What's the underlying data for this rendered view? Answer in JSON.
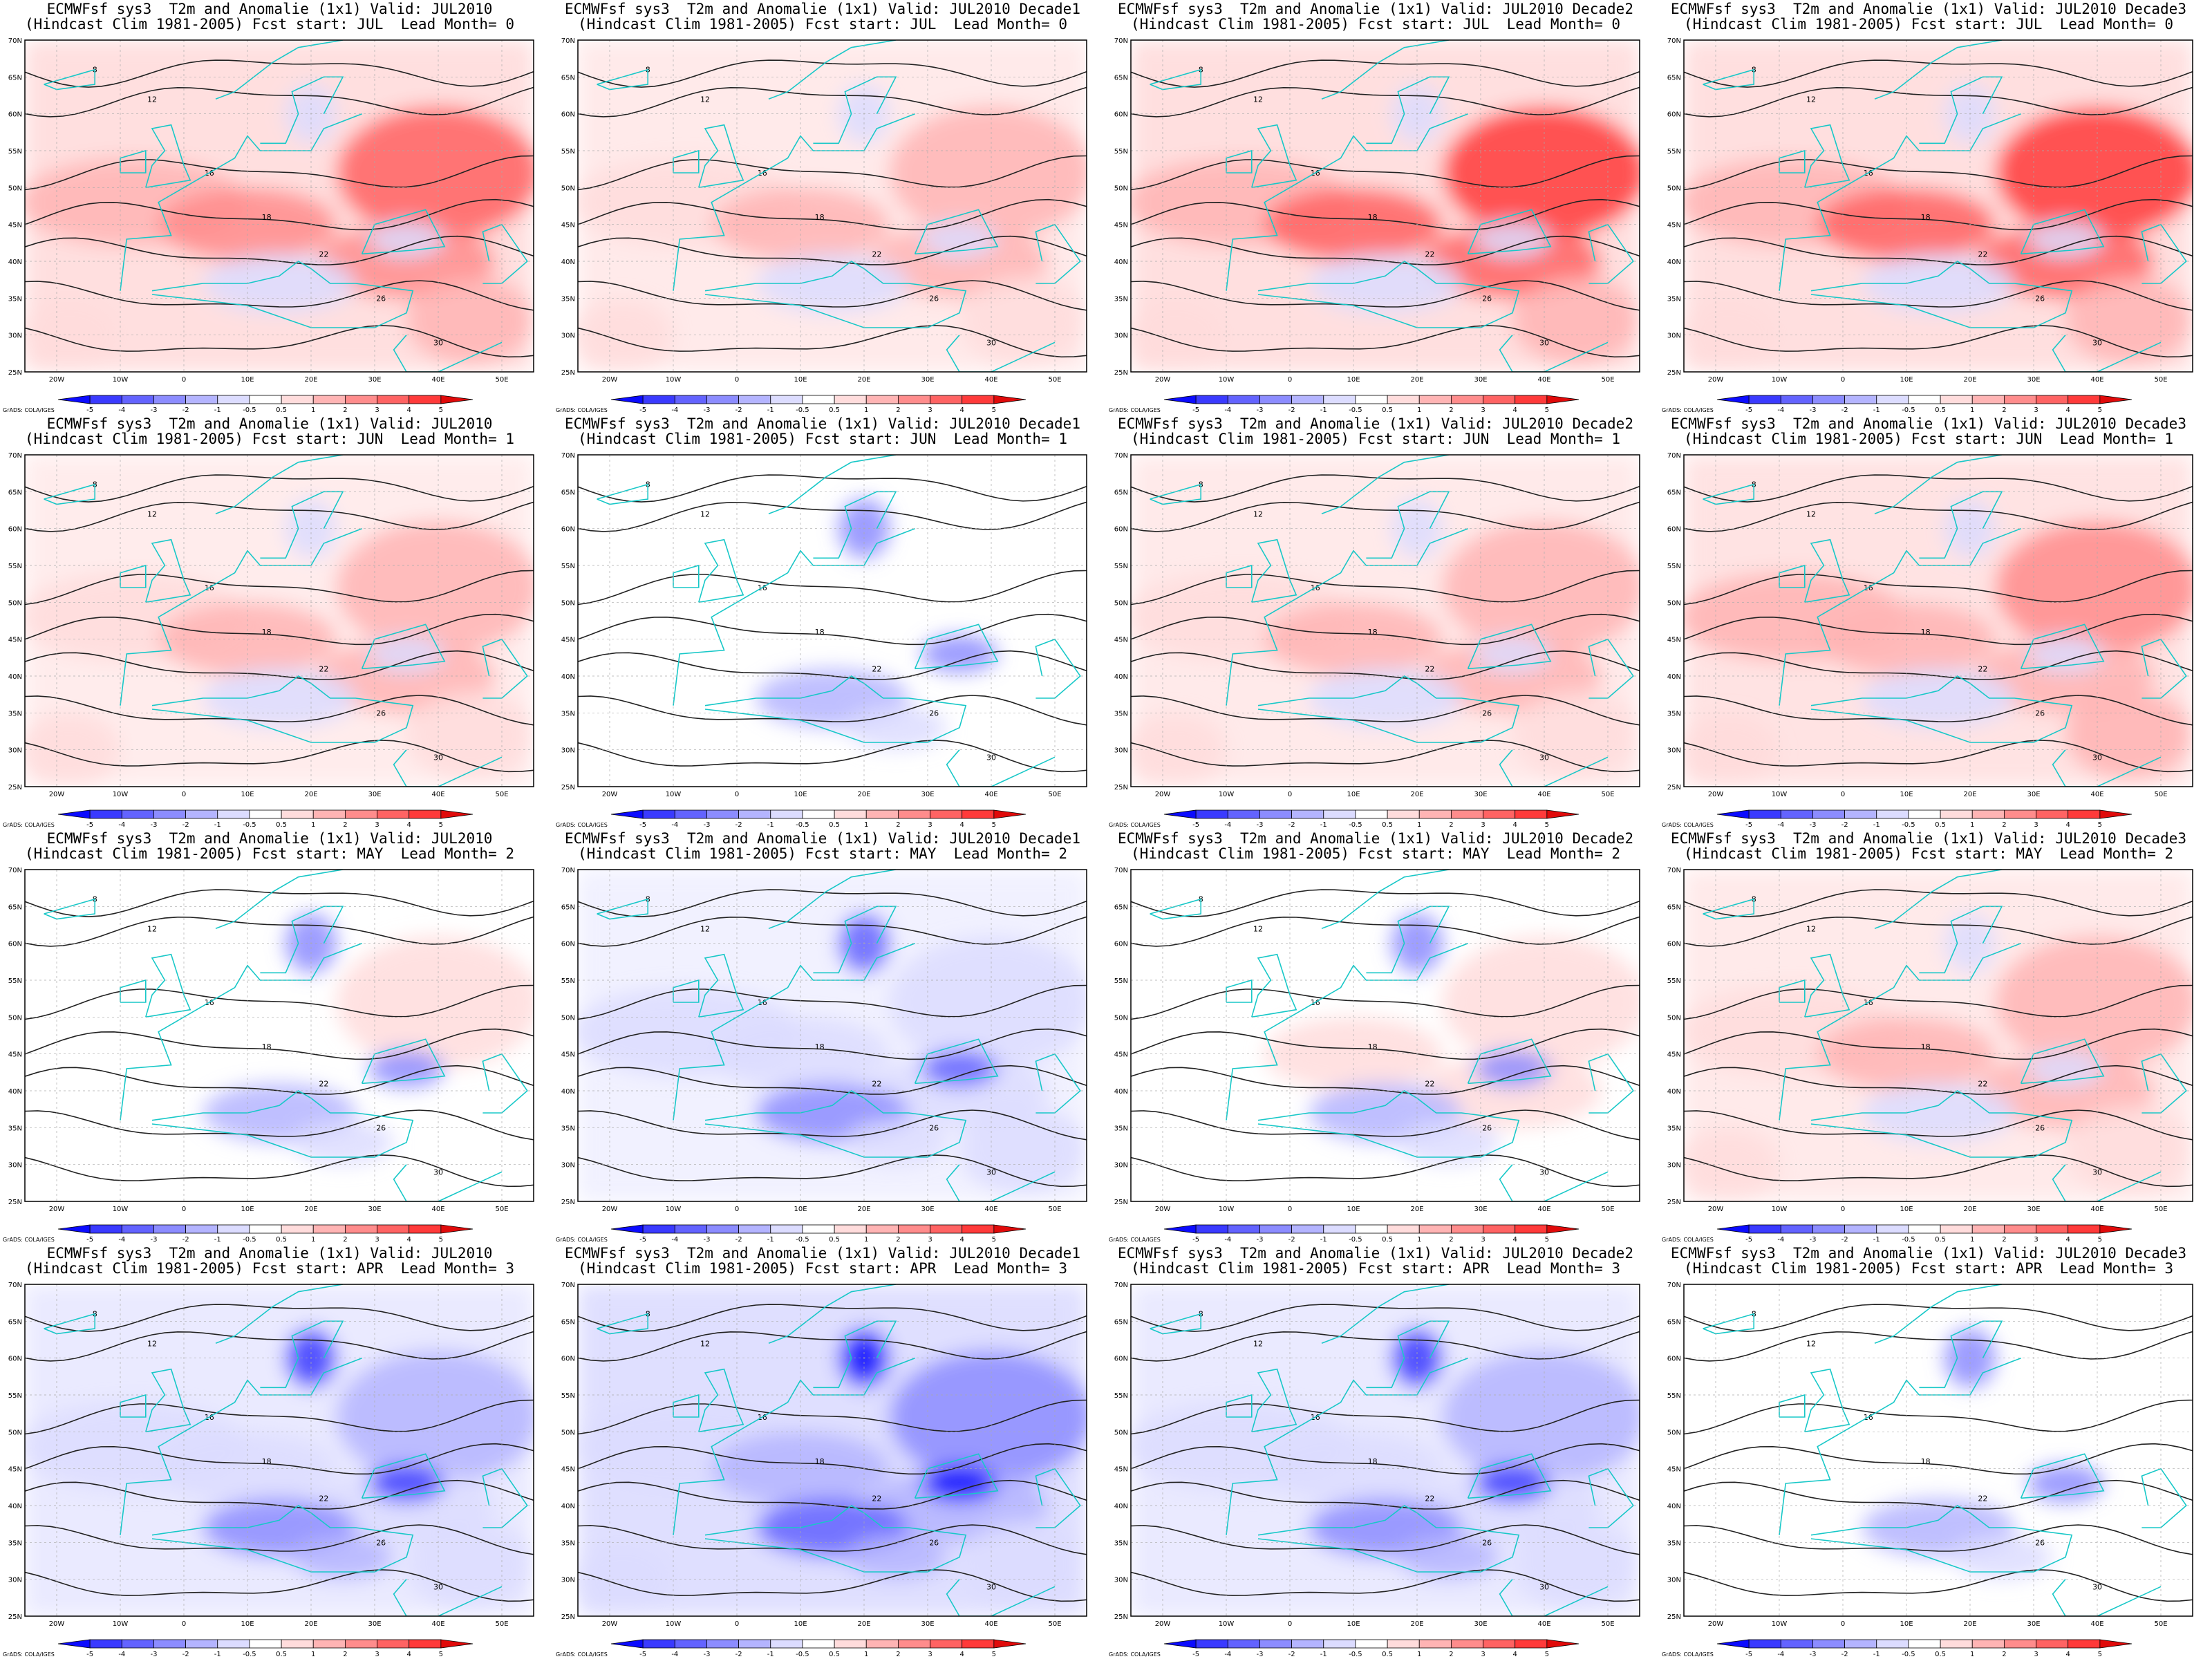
{
  "figure": {
    "rows": [
      {
        "lead_month": "0",
        "fcst_start": "JUL"
      },
      {
        "lead_month": "1",
        "fcst_start": "JUN"
      },
      {
        "lead_month": "2",
        "fcst_start": "MAY"
      },
      {
        "lead_month": "3",
        "fcst_start": "APR"
      }
    ],
    "columns": [
      "JUL2010",
      "JUL2010 Decade1",
      "JUL2010 Decade2",
      "JUL2010 Decade3"
    ],
    "title_prefix": "ECMWFsf sys3  T2m and Anomalie (1x1) Valid: ",
    "subtitle_prefix": "(Hindcast Clim 1981-2005) Fcst start: ",
    "subtitle_mid": "  Lead Month= ",
    "credit": "GrADS: COLA/IGES",
    "lat_labels": [
      "70N",
      "65N",
      "60N",
      "55N",
      "50N",
      "45N",
      "40N",
      "35N",
      "30N",
      "25N"
    ],
    "lon_labels": [
      "20W",
      "10W",
      "0",
      "10E",
      "20E",
      "30E",
      "40E",
      "50E"
    ],
    "colorbar_labels": [
      "-5",
      "-4",
      "-3",
      "-2",
      "-1",
      "-0.5",
      "0.5",
      "1",
      "2",
      "3",
      "4",
      "5"
    ],
    "colorbar_colors": [
      "#0b0bff",
      "#3a3aff",
      "#6363ff",
      "#8c8cff",
      "#b4b4ff",
      "#dcdcff",
      "#ffffff",
      "#ffdcdc",
      "#ffb4b4",
      "#ff8c8c",
      "#ff6363",
      "#ff3a3a",
      "#e00a0a"
    ],
    "contour_labels": [
      "8",
      "12",
      "16",
      "18",
      "22",
      "26",
      "30"
    ],
    "coast_color": "#18c8c8"
  },
  "chart_data": [
    {
      "type": "heatmap",
      "title": "ECMWFsf sys3  T2m and Anomalie (1x1) Valid: JUL2010",
      "subtitle": "(Hindcast Clim 1981-2005) Fcst start: JUL  Lead Month= 0",
      "xlim": [
        -25,
        55
      ],
      "ylim": [
        25,
        70
      ],
      "anomaly_pattern": "strong warm",
      "mean": 1.6
    },
    {
      "type": "heatmap",
      "title": "ECMWFsf sys3  T2m and Anomalie (1x1) Valid: JUL2010 Decade1",
      "subtitle": "(Hindcast Clim 1981-2005) Fcst start: JUL  Lead Month= 0",
      "xlim": [
        -25,
        55
      ],
      "ylim": [
        25,
        70
      ],
      "anomaly_pattern": "warm north, cool south-east",
      "mean": 0.9
    },
    {
      "type": "heatmap",
      "title": "ECMWFsf sys3  T2m and Anomalie (1x1) Valid: JUL2010 Decade2",
      "subtitle": "(Hindcast Clim 1981-2005) Fcst start: JUL  Lead Month= 0",
      "xlim": [
        -25,
        55
      ],
      "ylim": [
        25,
        70
      ],
      "anomaly_pattern": "strong warm",
      "mean": 1.8
    },
    {
      "type": "heatmap",
      "title": "ECMWFsf sys3  T2m and Anomalie (1x1) Valid: JUL2010 Decade3",
      "subtitle": "(Hindcast Clim 1981-2005) Fcst start: JUL  Lead Month= 0",
      "xlim": [
        -25,
        55
      ],
      "ylim": [
        25,
        70
      ],
      "anomaly_pattern": "strong warm",
      "mean": 1.8
    },
    {
      "type": "heatmap",
      "title": "ECMWFsf sys3  T2m and Anomalie (1x1) Valid: JUL2010",
      "subtitle": "(Hindcast Clim 1981-2005) Fcst start: JUN  Lead Month= 1",
      "xlim": [
        -25,
        55
      ],
      "ylim": [
        25,
        70
      ],
      "anomaly_pattern": "moderate warm",
      "mean": 0.8
    },
    {
      "type": "heatmap",
      "title": "ECMWFsf sys3  T2m and Anomalie (1x1) Valid: JUL2010 Decade1",
      "subtitle": "(Hindcast Clim 1981-2005) Fcst start: JUN  Lead Month= 1",
      "xlim": [
        -25,
        55
      ],
      "ylim": [
        25,
        70
      ],
      "anomaly_pattern": "weak, cool Baltic",
      "mean": 0.1
    },
    {
      "type": "heatmap",
      "title": "ECMWFsf sys3  T2m and Anomalie (1x1) Valid: JUL2010 Decade2",
      "subtitle": "(Hindcast Clim 1981-2005) Fcst start: JUN  Lead Month= 1",
      "xlim": [
        -25,
        55
      ],
      "ylim": [
        25,
        70
      ],
      "anomaly_pattern": "moderate warm",
      "mean": 0.9
    },
    {
      "type": "heatmap",
      "title": "ECMWFsf sys3  T2m and Anomalie (1x1) Valid: JUL2010 Decade3",
      "subtitle": "(Hindcast Clim 1981-2005) Fcst start: JUN  Lead Month= 1",
      "xlim": [
        -25,
        55
      ],
      "ylim": [
        25,
        70
      ],
      "anomaly_pattern": "warm",
      "mean": 1.2
    },
    {
      "type": "heatmap",
      "title": "ECMWFsf sys3  T2m and Anomalie (1x1) Valid: JUL2010",
      "subtitle": "(Hindcast Clim 1981-2005) Fcst start: MAY  Lead Month= 2",
      "xlim": [
        -25,
        55
      ],
      "ylim": [
        25,
        70
      ],
      "anomaly_pattern": "mixed, cool Baltic and Black Sea",
      "mean": 0.2
    },
    {
      "type": "heatmap",
      "title": "ECMWFsf sys3  T2m and Anomalie (1x1) Valid: JUL2010 Decade1",
      "subtitle": "(Hindcast Clim 1981-2005) Fcst start: MAY  Lead Month= 2",
      "xlim": [
        -25,
        55
      ],
      "ylim": [
        25,
        70
      ],
      "anomaly_pattern": "cool Mediterranean",
      "mean": -0.4
    },
    {
      "type": "heatmap",
      "title": "ECMWFsf sys3  T2m and Anomalie (1x1) Valid: JUL2010 Decade2",
      "subtitle": "(Hindcast Clim 1981-2005) Fcst start: MAY  Lead Month= 2",
      "xlim": [
        -25,
        55
      ],
      "ylim": [
        25,
        70
      ],
      "anomaly_pattern": "mixed",
      "mean": 0.3
    },
    {
      "type": "heatmap",
      "title": "ECMWFsf sys3  T2m and Anomalie (1x1) Valid: JUL2010 Decade3",
      "subtitle": "(Hindcast Clim 1981-2005) Fcst start: MAY  Lead Month= 2",
      "xlim": [
        -25,
        55
      ],
      "ylim": [
        25,
        70
      ],
      "anomaly_pattern": "warm east",
      "mean": 0.9
    },
    {
      "type": "heatmap",
      "title": "ECMWFsf sys3  T2m and Anomalie (1x1) Valid: JUL2010",
      "subtitle": "(Hindcast Clim 1981-2005) Fcst start: APR  Lead Month= 3",
      "xlim": [
        -25,
        55
      ],
      "ylim": [
        25,
        70
      ],
      "anomaly_pattern": "cool",
      "mean": -0.6
    },
    {
      "type": "heatmap",
      "title": "ECMWFsf sys3  T2m and Anomalie (1x1) Valid: JUL2010 Decade1",
      "subtitle": "(Hindcast Clim 1981-2005) Fcst start: APR  Lead Month= 3",
      "xlim": [
        -25,
        55
      ],
      "ylim": [
        25,
        70
      ],
      "anomaly_pattern": "strong cool",
      "mean": -1.1
    },
    {
      "type": "heatmap",
      "title": "ECMWFsf sys3  T2m and Anomalie (1x1) Valid: JUL2010 Decade2",
      "subtitle": "(Hindcast Clim 1981-2005) Fcst start: APR  Lead Month= 3",
      "xlim": [
        -25,
        55
      ],
      "ylim": [
        25,
        70
      ],
      "anomaly_pattern": "cool",
      "mean": -0.6
    },
    {
      "type": "heatmap",
      "title": "ECMWFsf sys3  T2m and Anomalie (1x1) Valid: JUL2010 Decade3",
      "subtitle": "(Hindcast Clim 1981-2005) Fcst start: APR  Lead Month= 3",
      "xlim": [
        -25,
        55
      ],
      "ylim": [
        25,
        70
      ],
      "anomaly_pattern": "mixed",
      "mean": 0.1
    }
  ]
}
